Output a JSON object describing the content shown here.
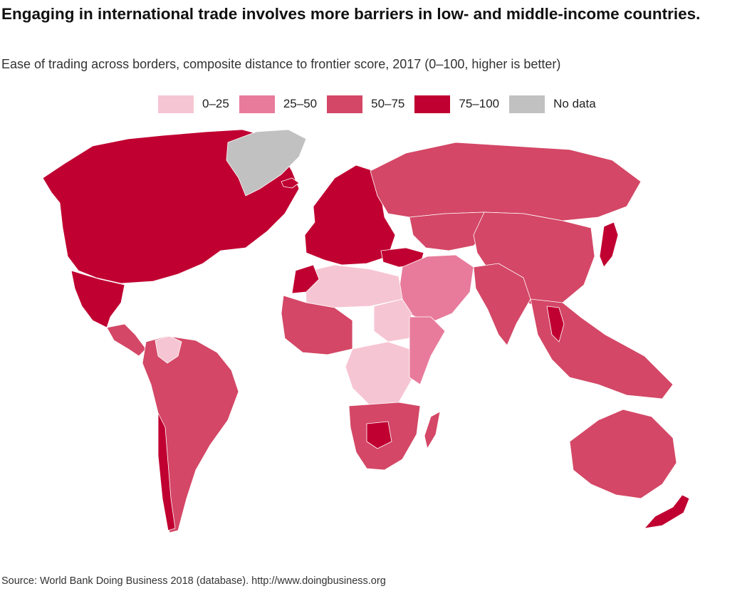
{
  "header": {
    "title": "Engaging in international trade involves more barriers in low- and middle-income countries.",
    "subtitle": "Ease of trading across borders, composite distance to frontier score, 2017 (0–100, higher is better)"
  },
  "legend": {
    "items": [
      {
        "label": "0–25",
        "color": "#f6c5d3"
      },
      {
        "label": "25–50",
        "color": "#e87b9b"
      },
      {
        "label": "50–75",
        "color": "#d44766"
      },
      {
        "label": "75–100",
        "color": "#c00031"
      },
      {
        "label": "No data",
        "color": "#c1c1c1"
      }
    ]
  },
  "map": {
    "type": "choropleth",
    "regions": [
      {
        "name": "North America",
        "class": "75–100"
      },
      {
        "name": "Greenland",
        "class": "No data"
      },
      {
        "name": "Iceland",
        "class": "75–100"
      },
      {
        "name": "Western Europe",
        "class": "75–100"
      },
      {
        "name": "Russia",
        "class": "50–75"
      },
      {
        "name": "Central Asia",
        "class": "50–75"
      },
      {
        "name": "China",
        "class": "50–75"
      },
      {
        "name": "Japan",
        "class": "75–100"
      },
      {
        "name": "Middle East",
        "class": "25–50"
      },
      {
        "name": "Turkey",
        "class": "75–100"
      },
      {
        "name": "India",
        "class": "50–75"
      },
      {
        "name": "Southeast Asia",
        "class": "50–75"
      },
      {
        "name": "Thailand",
        "class": "75–100"
      },
      {
        "name": "Mexico",
        "class": "75–100"
      },
      {
        "name": "Central America",
        "class": "50–75"
      },
      {
        "name": "South America",
        "class": "50–75"
      },
      {
        "name": "Chile",
        "class": "75–100"
      },
      {
        "name": "Venezuela",
        "class": "0–25"
      },
      {
        "name": "North Africa",
        "class": "0–25"
      },
      {
        "name": "Morocco",
        "class": "75–100"
      },
      {
        "name": "West Africa",
        "class": "50–75"
      },
      {
        "name": "Sudan",
        "class": "0–25"
      },
      {
        "name": "Central Africa",
        "class": "0–25"
      },
      {
        "name": "East Africa",
        "class": "25–50"
      },
      {
        "name": "Southern Africa",
        "class": "50–75"
      },
      {
        "name": "Botswana",
        "class": "75–100"
      },
      {
        "name": "Madagascar",
        "class": "50–75"
      },
      {
        "name": "Australia",
        "class": "50–75"
      },
      {
        "name": "New Zealand",
        "class": "75–100"
      }
    ]
  },
  "footer": {
    "source": "Source: World Bank Doing Business 2018 (database). http://www.doingbusiness.org"
  }
}
